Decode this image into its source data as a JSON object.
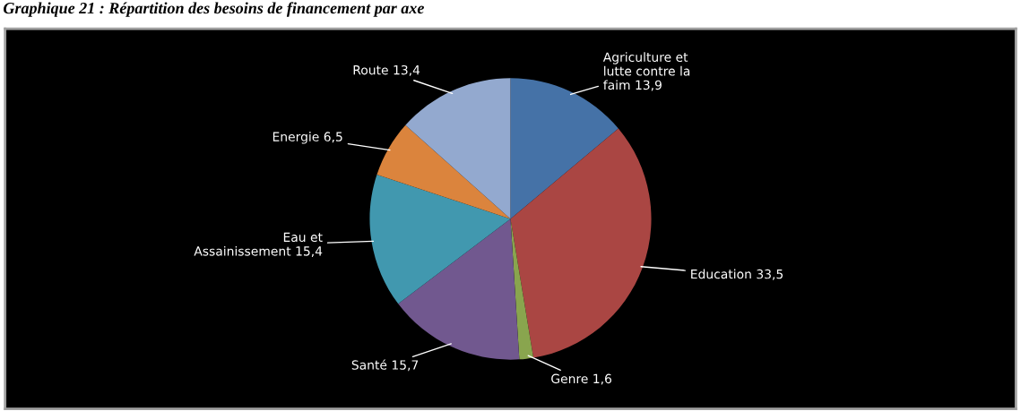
{
  "chart_data": {
    "type": "pie",
    "title": "Graphique 21 : Répartition des besoins de financement par axe",
    "categories": [
      "Agriculture et\nlutte contre la\nfaim",
      "Education",
      "Genre",
      "Santé",
      "Eau et\nAssainissement",
      "Energie",
      "Route"
    ],
    "values": [
      13.9,
      33.5,
      1.6,
      15.7,
      15.4,
      6.5,
      13.4
    ],
    "value_labels": [
      "13,9",
      "33,5",
      "1,6",
      "15,7",
      "15,4",
      "6,5",
      "13,4"
    ],
    "colors": [
      "#4572a7",
      "#aa4643",
      "#89a54e",
      "#71588f",
      "#4198af",
      "#db843d",
      "#93a9cf"
    ],
    "legend": false
  }
}
